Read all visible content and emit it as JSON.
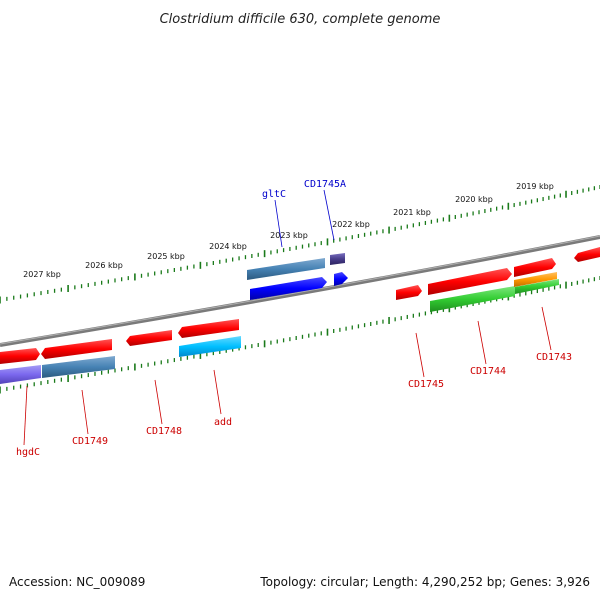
{
  "title": "Clostridium difficile 630, complete genome",
  "footer": {
    "accession": "Accession: NC_009089",
    "summary": "Topology: circular; Length: 4,290,252 bp; Genes: 3,926"
  },
  "colors": {
    "backbone": "#808080",
    "ticks": "#1a7a1a",
    "label_red": "#cc0000",
    "label_blue": "#0000cc",
    "red_gene": "#ff0000",
    "steelblue_gene": "#4682b4",
    "blue_gene": "#0000ff",
    "cyan_gene": "#00bfff",
    "purple_gene": "#7b68ee",
    "green_gene": "#32cd32",
    "orange_gene": "#ff9900",
    "darkslate_gene": "#483d8b"
  },
  "ticks": [
    "2027 kbp",
    "2026 kbp",
    "2025 kbp",
    "2024 kbp",
    "2023 kbp",
    "2022 kbp",
    "2021 kbp",
    "2020 kbp",
    "2019 kbp"
  ],
  "gene_labels": [
    {
      "text": "gltC",
      "color": "blue"
    },
    {
      "text": "CD1745A",
      "color": "blue"
    },
    {
      "text": "hgdC",
      "color": "red"
    },
    {
      "text": "CD1749",
      "color": "red"
    },
    {
      "text": "CD1748",
      "color": "red"
    },
    {
      "text": "add",
      "color": "red"
    },
    {
      "text": "CD1745",
      "color": "red"
    },
    {
      "text": "CD1744",
      "color": "red"
    },
    {
      "text": "CD1743",
      "color": "red"
    }
  ]
}
